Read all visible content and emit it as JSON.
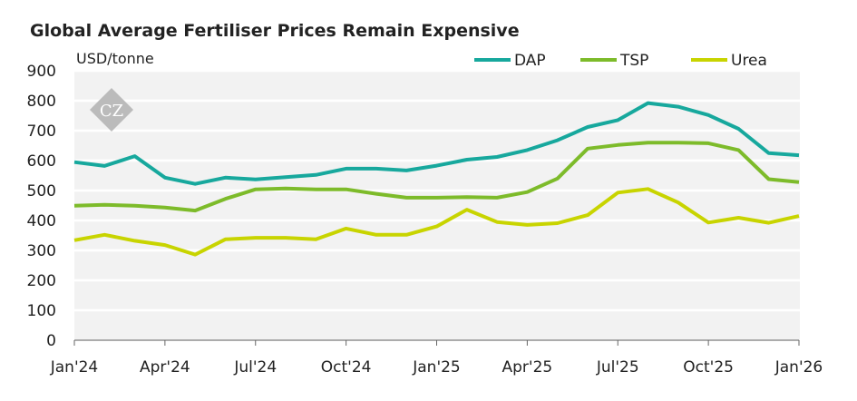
{
  "chart_data": {
    "type": "line",
    "title": "Global Average Fertiliser Prices Remain Expensive",
    "ylabel": "USD/tonne",
    "xlabel": "",
    "ylim": [
      0,
      900
    ],
    "yticks": [
      0,
      100,
      200,
      300,
      400,
      500,
      600,
      700,
      800,
      900
    ],
    "xtick_labels": [
      "Jan'24",
      "Apr'24",
      "Jul'24",
      "Oct'24",
      "Jan'25",
      "Apr'25",
      "Jul'25",
      "Oct'25",
      "Jan'26"
    ],
    "x": [
      "Jan'24",
      "Feb'24",
      "Mar'24",
      "Apr'24",
      "May'24",
      "Jun'24",
      "Jul'24",
      "Aug'24",
      "Sep'24",
      "Oct'24",
      "Nov'24",
      "Dec'24",
      "Jan'25",
      "Feb'25",
      "Mar'25",
      "Apr'25",
      "May'25",
      "Jun'25",
      "Jul'25",
      "Aug'25",
      "Sep'25",
      "Oct'25",
      "Nov'25",
      "Dec'25",
      "Jan'26"
    ],
    "grid": true,
    "legend_position": "top-right",
    "series": [
      {
        "name": "DAP",
        "color": "#17a89d",
        "values": [
          595,
          582,
          615,
          543,
          522,
          543,
          537,
          545,
          552,
          573,
          573,
          567,
          583,
          603,
          612,
          635,
          668,
          712,
          735,
          792,
          780,
          752,
          706,
          625,
          618
        ]
      },
      {
        "name": "TSP",
        "color": "#7dbb2a",
        "values": [
          449,
          452,
          449,
          443,
          433,
          472,
          504,
          507,
          504,
          504,
          489,
          476,
          476,
          478,
          476,
          495,
          540,
          640,
          652,
          660,
          660,
          658,
          635,
          538,
          528
        ]
      },
      {
        "name": "Urea",
        "color": "#c8d400",
        "values": [
          334,
          352,
          332,
          318,
          286,
          337,
          342,
          342,
          337,
          373,
          352,
          352,
          380,
          436,
          395,
          385,
          391,
          418,
          493,
          505,
          460,
          393,
          409,
          392,
          415
        ]
      }
    ]
  },
  "logo": {
    "text": "CZ"
  }
}
